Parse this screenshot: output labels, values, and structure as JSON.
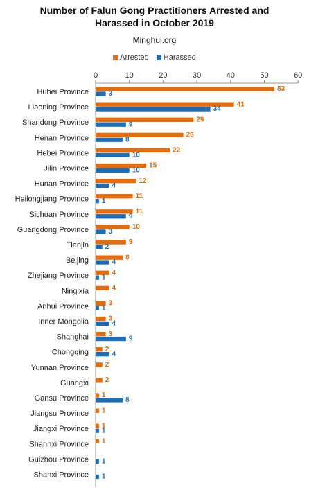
{
  "chart_data": {
    "type": "bar",
    "orientation": "horizontal",
    "title_lines": [
      "Number of Falun Gong Practitioners Arrested and",
      "Harassed in October 2019"
    ],
    "subtitle": "Minghui.org",
    "xlim": [
      0,
      60
    ],
    "x_ticks": [
      "0",
      "10",
      "20",
      "30",
      "40",
      "50",
      "60"
    ],
    "legend_position": "top",
    "grid": false,
    "categories": [
      "Hubei Province",
      "Liaoning Province",
      "Shandong Province",
      "Henan Province",
      "Hebei Province",
      "Jilin Province",
      "Hunan Province",
      "Heilongjiang Province",
      "Sichuan Province",
      "Guangdong Province",
      "Tianjin",
      "Beijing",
      "Zhejiang Province",
      "Ningixia",
      "Anhui Province",
      "Inner Mongolia",
      "Shanghai",
      "Chongqing",
      "Yunnan Province",
      "Guangxi",
      "Gansu Province",
      "Jiangsu Province",
      "Jiangxi Province",
      "Shannxi Province",
      "Guizhou Province",
      "Shanxi Province"
    ],
    "series": [
      {
        "name": "Arrested",
        "color": "#E46C0A",
        "values": [
          53,
          41,
          29,
          26,
          22,
          15,
          12,
          11,
          11,
          10,
          9,
          8,
          4,
          4,
          3,
          3,
          3,
          2,
          2,
          2,
          1,
          1,
          1,
          1,
          null,
          null
        ]
      },
      {
        "name": "Harassed",
        "color": "#1F6EB5",
        "values": [
          3,
          34,
          9,
          8,
          10,
          10,
          4,
          1,
          9,
          3,
          2,
          4,
          1,
          null,
          1,
          4,
          9,
          4,
          null,
          null,
          8,
          null,
          1,
          null,
          1,
          1
        ]
      }
    ]
  }
}
